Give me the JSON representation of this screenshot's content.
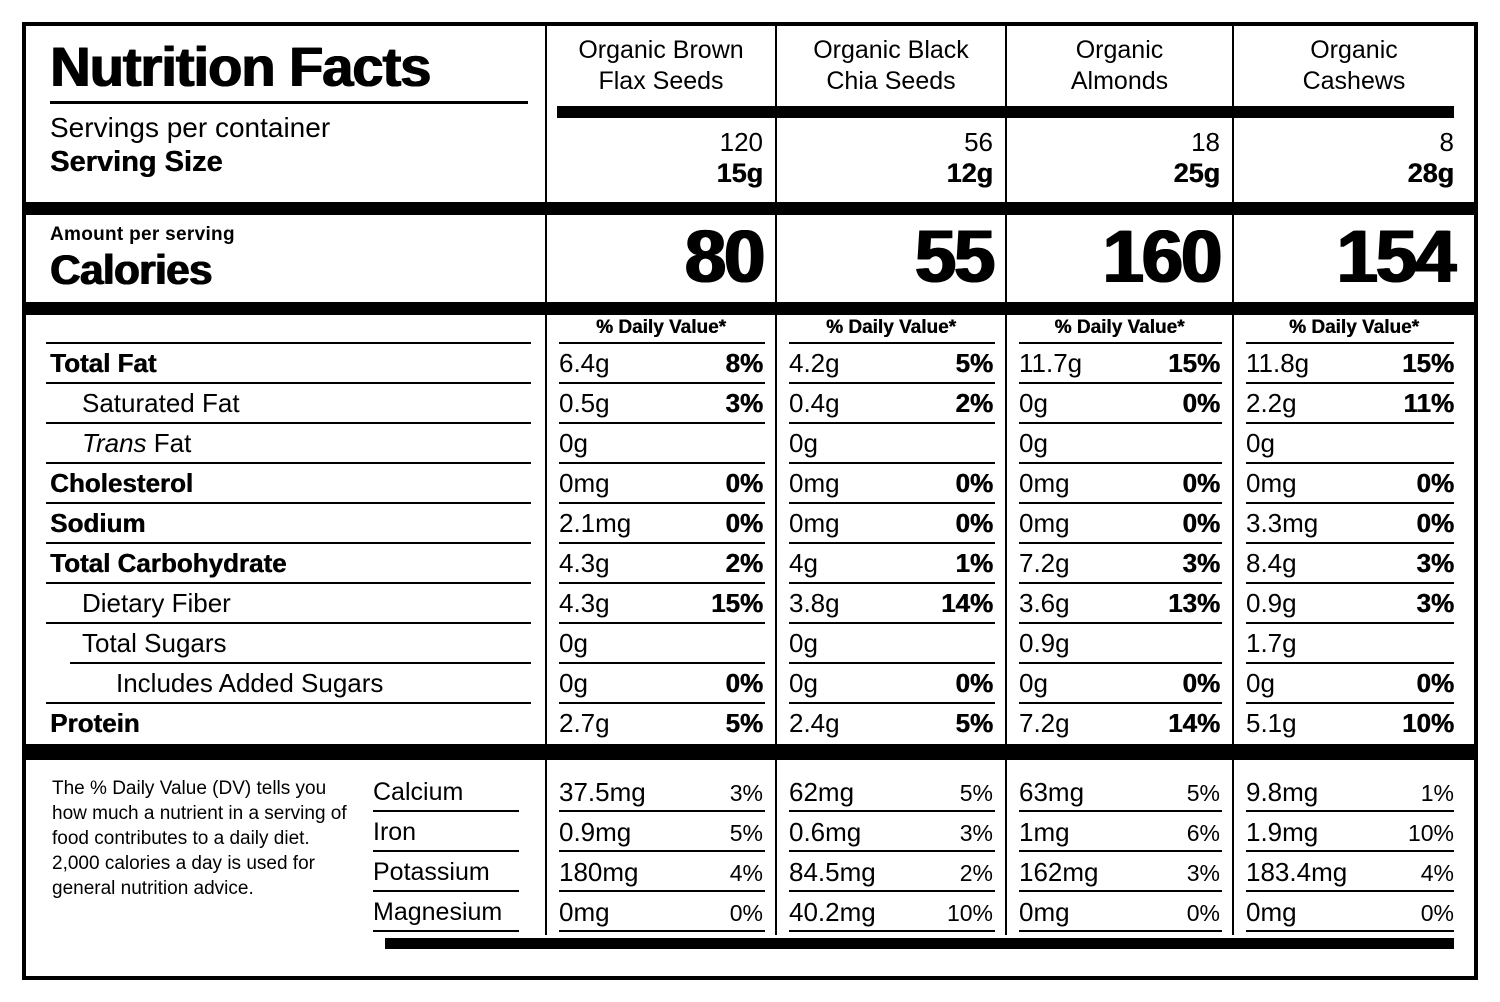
{
  "label": {
    "title": "Nutrition Facts",
    "servings_per_container_label": "Servings per container",
    "serving_size_label": "Serving Size",
    "amount_per_serving_label": "Amount per serving",
    "calories_label": "Calories",
    "daily_value_header": "% Daily Value*",
    "footnote": "The % Daily Value (DV) tells you how much a nutrient in a serving of food contributes to a daily diet. 2,000 calories a day is used for general nutrition advice."
  },
  "nutrient_labels": [
    {
      "label": "Total Fat",
      "bold": true,
      "indent": 0
    },
    {
      "label": "Saturated Fat",
      "bold": false,
      "indent": 1
    },
    {
      "label": "Fat",
      "italic_prefix": "Trans",
      "bold": false,
      "indent": 1
    },
    {
      "label": "Cholesterol",
      "bold": true,
      "indent": 0
    },
    {
      "label": "Sodium",
      "bold": true,
      "indent": 0
    },
    {
      "label": "Total Carbohydrate",
      "bold": true,
      "indent": 0
    },
    {
      "label": "Dietary Fiber",
      "bold": false,
      "indent": 1
    },
    {
      "label": "Total Sugars",
      "bold": false,
      "indent": 1,
      "indented_divider": true
    },
    {
      "label": "Includes Added Sugars",
      "bold": false,
      "indent": 2
    },
    {
      "label": "Protein",
      "bold": true,
      "indent": 0,
      "last": true
    }
  ],
  "mineral_labels": [
    "Calcium",
    "Iron",
    "Potassium",
    "Magnesium"
  ],
  "products": [
    {
      "name": [
        "Organic Brown",
        "Flax Seeds"
      ],
      "servings_per_container": "120",
      "serving_size": "15g",
      "calories": "80",
      "nutrients": [
        {
          "amount": "6.4g",
          "dv": "8%"
        },
        {
          "amount": "0.5g",
          "dv": "3%"
        },
        {
          "amount": "0g",
          "dv": ""
        },
        {
          "amount": "0mg",
          "dv": "0%"
        },
        {
          "amount": "2.1mg",
          "dv": "0%"
        },
        {
          "amount": "4.3g",
          "dv": "2%"
        },
        {
          "amount": "4.3g",
          "dv": "15%"
        },
        {
          "amount": "0g",
          "dv": ""
        },
        {
          "amount": "0g",
          "dv": "0%"
        },
        {
          "amount": "2.7g",
          "dv": "5%"
        }
      ],
      "minerals": [
        {
          "amount": "37.5mg",
          "dv": "3%"
        },
        {
          "amount": "0.9mg",
          "dv": "5%"
        },
        {
          "amount": "180mg",
          "dv": "4%"
        },
        {
          "amount": "0mg",
          "dv": "0%"
        }
      ]
    },
    {
      "name": [
        "Organic Black",
        "Chia Seeds"
      ],
      "servings_per_container": "56",
      "serving_size": "12g",
      "calories": "55",
      "nutrients": [
        {
          "amount": "4.2g",
          "dv": "5%"
        },
        {
          "amount": "0.4g",
          "dv": "2%"
        },
        {
          "amount": "0g",
          "dv": ""
        },
        {
          "amount": "0mg",
          "dv": "0%"
        },
        {
          "amount": "0mg",
          "dv": "0%"
        },
        {
          "amount": "4g",
          "dv": "1%"
        },
        {
          "amount": "3.8g",
          "dv": "14%"
        },
        {
          "amount": "0g",
          "dv": ""
        },
        {
          "amount": "0g",
          "dv": "0%"
        },
        {
          "amount": "2.4g",
          "dv": "5%"
        }
      ],
      "minerals": [
        {
          "amount": "62mg",
          "dv": "5%"
        },
        {
          "amount": "0.6mg",
          "dv": "3%"
        },
        {
          "amount": "84.5mg",
          "dv": "2%"
        },
        {
          "amount": "40.2mg",
          "dv": "10%"
        }
      ]
    },
    {
      "name": [
        "Organic",
        "Almonds"
      ],
      "servings_per_container": "18",
      "serving_size": "25g",
      "calories": "160",
      "nutrients": [
        {
          "amount": "11.7g",
          "dv": "15%"
        },
        {
          "amount": "0g",
          "dv": "0%"
        },
        {
          "amount": "0g",
          "dv": ""
        },
        {
          "amount": "0mg",
          "dv": "0%"
        },
        {
          "amount": "0mg",
          "dv": "0%"
        },
        {
          "amount": "7.2g",
          "dv": "3%"
        },
        {
          "amount": "3.6g",
          "dv": "13%"
        },
        {
          "amount": "0.9g",
          "dv": ""
        },
        {
          "amount": "0g",
          "dv": "0%"
        },
        {
          "amount": "7.2g",
          "dv": "14%"
        }
      ],
      "minerals": [
        {
          "amount": "63mg",
          "dv": "5%"
        },
        {
          "amount": "1mg",
          "dv": "6%"
        },
        {
          "amount": "162mg",
          "dv": "3%"
        },
        {
          "amount": "0mg",
          "dv": "0%"
        }
      ]
    },
    {
      "name": [
        "Organic",
        "Cashews"
      ],
      "servings_per_container": "8",
      "serving_size": "28g",
      "calories": "154",
      "nutrients": [
        {
          "amount": "11.8g",
          "dv": "15%"
        },
        {
          "amount": "2.2g",
          "dv": "11%"
        },
        {
          "amount": "0g",
          "dv": ""
        },
        {
          "amount": "0mg",
          "dv": "0%"
        },
        {
          "amount": "3.3mg",
          "dv": "0%"
        },
        {
          "amount": "8.4g",
          "dv": "3%"
        },
        {
          "amount": "0.9g",
          "dv": "3%"
        },
        {
          "amount": "1.7g",
          "dv": ""
        },
        {
          "amount": "0g",
          "dv": "0%"
        },
        {
          "amount": "5.1g",
          "dv": "10%"
        }
      ],
      "minerals": [
        {
          "amount": "9.8mg",
          "dv": "1%"
        },
        {
          "amount": "1.9mg",
          "dv": "10%"
        },
        {
          "amount": "183.4mg",
          "dv": "4%"
        },
        {
          "amount": "0mg",
          "dv": "0%"
        }
      ]
    }
  ]
}
